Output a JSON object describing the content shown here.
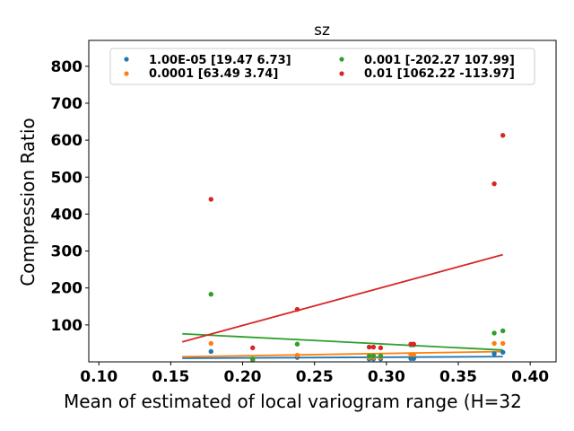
{
  "chart_data": {
    "type": "scatter",
    "title": "sz",
    "xlabel": "Mean of estimated of local variogram range (H=32",
    "ylabel": "Compression Ratio",
    "xlim": [
      0.093,
      0.418
    ],
    "ylim": [
      0,
      870
    ],
    "xticks": [
      "0.10",
      "0.15",
      "0.20",
      "0.25",
      "0.30",
      "0.35",
      "0.40"
    ],
    "xtick_values": [
      0.1,
      0.15,
      0.2,
      0.25,
      0.3,
      0.35,
      0.4
    ],
    "yticks": [
      "100",
      "200",
      "300",
      "400",
      "500",
      "600",
      "700",
      "800"
    ],
    "ytick_values": [
      100,
      200,
      300,
      400,
      500,
      600,
      700,
      800
    ],
    "legend_placement": "top",
    "grid": false,
    "series": [
      {
        "name": "1.00E-05 [19.47  6.73]",
        "color": "#1f77b4",
        "x": [
          0.178,
          0.207,
          0.238,
          0.288,
          0.291,
          0.296,
          0.317,
          0.319,
          0.375,
          0.381
        ],
        "y": [
          28,
          5,
          12,
          8,
          8,
          8,
          9,
          9,
          22,
          26
        ],
        "fit": {
          "x": [
            0.158,
            0.381
          ],
          "y": [
            9.8,
            14.2
          ]
        }
      },
      {
        "name": "0.0001 [63.49  3.74]",
        "color": "#ff7f0e",
        "x": [
          0.178,
          0.207,
          0.238,
          0.288,
          0.291,
          0.296,
          0.317,
          0.319,
          0.375,
          0.381
        ],
        "y": [
          50,
          6,
          18,
          12,
          12,
          12,
          20,
          20,
          50,
          50
        ],
        "fit": {
          "x": [
            0.158,
            0.381
          ],
          "y": [
            13.8,
            27.8
          ]
        }
      },
      {
        "name": "0.001 [-202.27  107.99]",
        "color": "#2ca02c",
        "x": [
          0.178,
          0.207,
          0.238,
          0.288,
          0.291,
          0.296,
          0.317,
          0.319,
          0.375,
          0.381
        ],
        "y": [
          183,
          8,
          48,
          16,
          16,
          16,
          46,
          46,
          78,
          84
        ],
        "fit": {
          "x": [
            0.158,
            0.381
          ],
          "y": [
            76,
            32
          ]
        }
      },
      {
        "name": "0.01 [1062.22 -113.97]",
        "color": "#d62728",
        "x": [
          0.178,
          0.207,
          0.238,
          0.288,
          0.291,
          0.296,
          0.317,
          0.319,
          0.375,
          0.381
        ],
        "y": [
          440,
          38,
          142,
          40,
          40,
          38,
          48,
          48,
          482,
          613
        ],
        "fit": {
          "x": [
            0.158,
            0.381
          ],
          "y": [
            54,
            290
          ]
        }
      }
    ]
  }
}
